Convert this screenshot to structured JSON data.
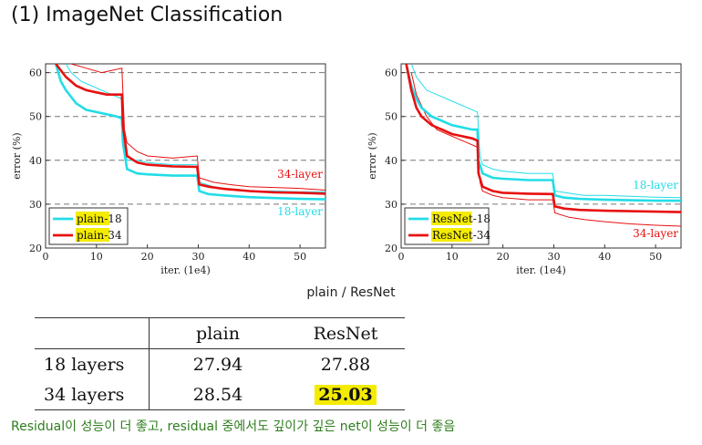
{
  "title": "(1) ImageNet Classification",
  "caption": "plain / ResNet",
  "note": "Residual이 성능이 더 좋고, residual 중에서도 깊이가 깊은 net이 성능이 더 좋음",
  "table": {
    "headers": [
      "",
      "plain",
      "ResNet"
    ],
    "rows": [
      {
        "label": "18 layers",
        "plain": "27.94",
        "resnet": "27.88"
      },
      {
        "label": "34 layers",
        "plain": "28.54",
        "resnet": "25.03"
      }
    ]
  },
  "colors": {
    "cyan": "#22dde8",
    "red": "#e81010",
    "highlight": "#f4ec00",
    "note": "#2e7d1e"
  },
  "chart_data": [
    {
      "type": "line",
      "xlabel": "iter. (1e4)",
      "ylabel": "error (%)",
      "xlim": [
        0,
        55
      ],
      "ylim": [
        20,
        62
      ],
      "xticks": [
        0,
        10,
        20,
        30,
        40,
        50
      ],
      "yticks": [
        20,
        30,
        40,
        50,
        60
      ],
      "grid": "dashed horizontal",
      "legend_position": "bottom-left",
      "annotations": [
        {
          "text": "34-layer",
          "x": 50,
          "y": 36,
          "color": "#e81010"
        },
        {
          "text": "18-layer",
          "x": 50,
          "y": 27.5,
          "color": "#22dde8"
        }
      ],
      "series": [
        {
          "name": "plain-18",
          "legend": [
            "plain",
            "-18"
          ],
          "color": "#22dde8",
          "train": [
            [
              2,
              62
            ],
            [
              3,
              58
            ],
            [
              4,
              56
            ],
            [
              6,
              53
            ],
            [
              8,
              51.5
            ],
            [
              10,
              51
            ],
            [
              12,
              50.5
            ],
            [
              14,
              50
            ],
            [
              15,
              49.5
            ],
            [
              15.2,
              44
            ],
            [
              16,
              38
            ],
            [
              18,
              37
            ],
            [
              20,
              36.8
            ],
            [
              25,
              36.5
            ],
            [
              29.8,
              36.5
            ],
            [
              30.2,
              33
            ],
            [
              32,
              32.3
            ],
            [
              35,
              32
            ],
            [
              40,
              31.6
            ],
            [
              45,
              31.4
            ],
            [
              50,
              31.2
            ],
            [
              55,
              31.1
            ]
          ],
          "val": [
            [
              4,
              62
            ],
            [
              5,
              60
            ],
            [
              7,
              58
            ],
            [
              9,
              57
            ],
            [
              11,
              56
            ],
            [
              13,
              55
            ],
            [
              15,
              54
            ],
            [
              15.5,
              44
            ],
            [
              16,
              40
            ],
            [
              18,
              40
            ],
            [
              20,
              39.5
            ],
            [
              25,
              39
            ],
            [
              29.8,
              39
            ],
            [
              30.2,
              35
            ],
            [
              33,
              34
            ],
            [
              36,
              33.5
            ],
            [
              40,
              33
            ],
            [
              45,
              33
            ],
            [
              50,
              32.8
            ],
            [
              55,
              32.8
            ]
          ]
        },
        {
          "name": "plain-34",
          "legend": [
            "plain",
            "-34"
          ],
          "color": "#e81010",
          "train": [
            [
              2,
              62
            ],
            [
              4,
              59
            ],
            [
              6,
              57
            ],
            [
              8,
              56
            ],
            [
              10,
              55.5
            ],
            [
              12,
              55
            ],
            [
              15,
              55
            ],
            [
              15.2,
              48
            ],
            [
              16,
              41
            ],
            [
              18,
              39.5
            ],
            [
              20,
              39
            ],
            [
              25,
              38.6
            ],
            [
              29.8,
              38.5
            ],
            [
              30.2,
              34.5
            ],
            [
              32,
              34
            ],
            [
              35,
              33.5
            ],
            [
              40,
              33
            ],
            [
              45,
              32.7
            ],
            [
              50,
              32.6
            ],
            [
              55,
              32.4
            ]
          ],
          "val": [
            [
              5,
              62
            ],
            [
              8,
              61
            ],
            [
              11,
              60
            ],
            [
              13,
              60.5
            ],
            [
              15,
              61
            ],
            [
              15.5,
              47
            ],
            [
              16,
              44
            ],
            [
              18,
              42
            ],
            [
              20,
              41
            ],
            [
              25,
              40.5
            ],
            [
              29.8,
              41
            ],
            [
              30.2,
              36
            ],
            [
              33,
              35
            ],
            [
              36,
              34.5
            ],
            [
              40,
              34
            ],
            [
              45,
              33.8
            ],
            [
              50,
              33.6
            ],
            [
              55,
              33.2
            ]
          ]
        }
      ]
    },
    {
      "type": "line",
      "xlabel": "iter. (1e4)",
      "ylabel": "error (%)",
      "xlim": [
        0,
        55
      ],
      "ylim": [
        20,
        62
      ],
      "xticks": [
        0,
        10,
        20,
        30,
        40,
        50
      ],
      "yticks": [
        20,
        30,
        40,
        50,
        60
      ],
      "grid": "dashed horizontal",
      "legend_position": "bottom-left",
      "annotations": [
        {
          "text": "18-layer",
          "x": 50,
          "y": 33.5,
          "color": "#22dde8"
        },
        {
          "text": "34-layer",
          "x": 50,
          "y": 22.5,
          "color": "#e81010"
        }
      ],
      "series": [
        {
          "name": "ResNet-18",
          "legend": [
            "ResNet",
            "-18"
          ],
          "color": "#22dde8",
          "train": [
            [
              1,
              62
            ],
            [
              2,
              57
            ],
            [
              3,
              54
            ],
            [
              4,
              52
            ],
            [
              6,
              50
            ],
            [
              8,
              49
            ],
            [
              10,
              48
            ],
            [
              12,
              47.5
            ],
            [
              14,
              47
            ],
            [
              15,
              47
            ],
            [
              15.2,
              40
            ],
            [
              16,
              37
            ],
            [
              18,
              36
            ],
            [
              20,
              35.8
            ],
            [
              25,
              35.5
            ],
            [
              29.8,
              35.5
            ],
            [
              30.2,
              32
            ],
            [
              32,
              31.5
            ],
            [
              35,
              31.2
            ],
            [
              40,
              31
            ],
            [
              45,
              30.9
            ],
            [
              50,
              30.8
            ],
            [
              55,
              30.8
            ]
          ],
          "val": [
            [
              2,
              62
            ],
            [
              3,
              59
            ],
            [
              5,
              56
            ],
            [
              7,
              55
            ],
            [
              9,
              54
            ],
            [
              11,
              53
            ],
            [
              13,
              52
            ],
            [
              15,
              51
            ],
            [
              15.5,
              41
            ],
            [
              16,
              39
            ],
            [
              18,
              38
            ],
            [
              20,
              37.5
            ],
            [
              25,
              37
            ],
            [
              29.8,
              37
            ],
            [
              30.2,
              33
            ],
            [
              33,
              32.5
            ],
            [
              36,
              32
            ],
            [
              40,
              32
            ],
            [
              45,
              31.8
            ],
            [
              50,
              31.6
            ],
            [
              55,
              31.5
            ]
          ]
        },
        {
          "name": "ResNet-34",
          "legend": [
            "ResNet",
            "-34"
          ],
          "color": "#e81010",
          "train": [
            [
              1,
              62
            ],
            [
              2,
              56
            ],
            [
              3,
              52
            ],
            [
              4,
              50
            ],
            [
              6,
              48
            ],
            [
              8,
              47
            ],
            [
              10,
              46
            ],
            [
              12,
              45.5
            ],
            [
              14,
              45
            ],
            [
              15,
              44.5
            ],
            [
              15.2,
              37
            ],
            [
              16,
              34
            ],
            [
              18,
              33
            ],
            [
              20,
              32.6
            ],
            [
              25,
              32.4
            ],
            [
              29.8,
              32.3
            ],
            [
              30.2,
              29.5
            ],
            [
              32,
              29
            ],
            [
              35,
              28.7
            ],
            [
              40,
              28.5
            ],
            [
              45,
              28.4
            ],
            [
              50,
              28.3
            ],
            [
              55,
              28.2
            ]
          ],
          "val": [
            [
              2,
              60
            ],
            [
              3,
              55
            ],
            [
              5,
              50
            ],
            [
              7,
              47
            ],
            [
              9,
              46
            ],
            [
              11,
              45
            ],
            [
              13,
              44
            ],
            [
              15,
              43
            ],
            [
              15.5,
              35
            ],
            [
              16,
              33
            ],
            [
              18,
              32
            ],
            [
              20,
              31.5
            ],
            [
              25,
              31
            ],
            [
              29.8,
              31
            ],
            [
              30.2,
              28
            ],
            [
              33,
              27
            ],
            [
              36,
              26.5
            ],
            [
              40,
              26
            ],
            [
              45,
              25.5
            ],
            [
              50,
              25.2
            ],
            [
              55,
              25
            ]
          ]
        }
      ]
    }
  ]
}
